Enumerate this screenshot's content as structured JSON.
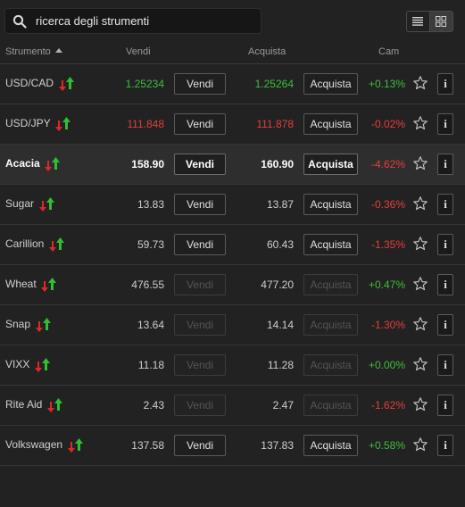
{
  "search": {
    "placeholder": "ricerca degli strumenti"
  },
  "view_toggle": {
    "options": [
      "list-view-icon",
      "grid-view-icon"
    ],
    "active": "grid-view-icon"
  },
  "header": {
    "instrument": "Strumento",
    "sell": "Vendi",
    "buy": "Acquista",
    "change": "Cam"
  },
  "colors": {
    "positive": "#3cbe3c",
    "negative": "#e83c3c",
    "background": "#222222"
  },
  "rows": [
    {
      "name": "USD/CAD",
      "sell": "1.25234",
      "sell_label": "Vendi",
      "buy": "1.25264",
      "buy_label": "Acquista",
      "change": "+0.13%",
      "trend": "pos",
      "price_color": "pos",
      "enabled": true,
      "selected": false
    },
    {
      "name": "USD/JPY",
      "sell": "111.848",
      "sell_label": "Vendi",
      "buy": "111.878",
      "buy_label": "Acquista",
      "change": "-0.02%",
      "trend": "neg",
      "price_color": "neg",
      "enabled": true,
      "selected": false
    },
    {
      "name": "Acacia",
      "sell": "158.90",
      "sell_label": "Vendi",
      "buy": "160.90",
      "buy_label": "Acquista",
      "change": "-4.62%",
      "trend": "neg",
      "price_color": "",
      "enabled": true,
      "selected": true
    },
    {
      "name": "Sugar",
      "sell": "13.83",
      "sell_label": "Vendi",
      "buy": "13.87",
      "buy_label": "Acquista",
      "change": "-0.36%",
      "trend": "neg",
      "price_color": "",
      "enabled": true,
      "selected": false
    },
    {
      "name": "Carillion",
      "sell": "59.73",
      "sell_label": "Vendi",
      "buy": "60.43",
      "buy_label": "Acquista",
      "change": "-1.35%",
      "trend": "neg",
      "price_color": "",
      "enabled": true,
      "selected": false
    },
    {
      "name": "Wheat",
      "sell": "476.55",
      "sell_label": "Vendi",
      "buy": "477.20",
      "buy_label": "Acquista",
      "change": "+0.47%",
      "trend": "pos",
      "price_color": "",
      "enabled": false,
      "selected": false
    },
    {
      "name": "Snap",
      "sell": "13.64",
      "sell_label": "Vendi",
      "buy": "14.14",
      "buy_label": "Acquista",
      "change": "-1.30%",
      "trend": "neg",
      "price_color": "",
      "enabled": false,
      "selected": false
    },
    {
      "name": "VIXX",
      "sell": "11.18",
      "sell_label": "Vendi",
      "buy": "11.28",
      "buy_label": "Acquista",
      "change": "+0.00%",
      "trend": "flat",
      "price_color": "",
      "enabled": false,
      "selected": false
    },
    {
      "name": "Rite Aid",
      "sell": "2.43",
      "sell_label": "Vendi",
      "buy": "2.47",
      "buy_label": "Acquista",
      "change": "-1.62%",
      "trend": "neg",
      "price_color": "",
      "enabled": false,
      "selected": false
    },
    {
      "name": "Volkswagen",
      "sell": "137.58",
      "sell_label": "Vendi",
      "buy": "137.83",
      "buy_label": "Acquista",
      "change": "+0.58%",
      "trend": "pos",
      "price_color": "",
      "enabled": true,
      "selected": false
    }
  ]
}
